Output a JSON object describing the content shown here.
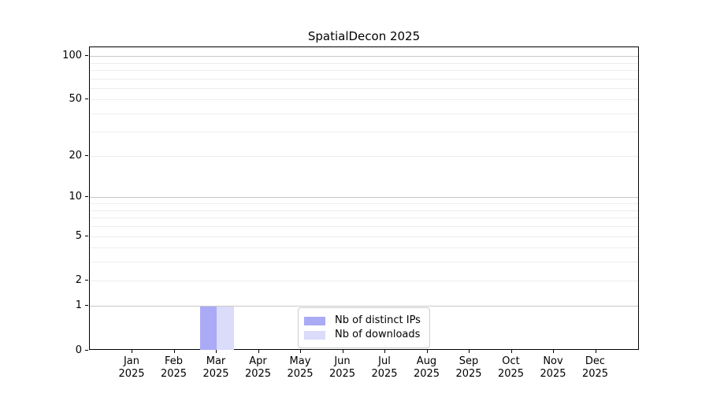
{
  "title": "SpatialDecon 2025",
  "chart_data": {
    "type": "bar",
    "title": "SpatialDecon 2025",
    "categories": [
      "Jan 2025",
      "Feb 2025",
      "Mar 2025",
      "Apr 2025",
      "May 2025",
      "Jun 2025",
      "Jul 2025",
      "Aug 2025",
      "Sep 2025",
      "Oct 2025",
      "Nov 2025",
      "Dec 2025"
    ],
    "series": [
      {
        "name": "Nb of distinct IPs",
        "color": "#aaaaf6",
        "values": [
          0,
          0,
          1,
          0,
          0,
          0,
          0,
          0,
          0,
          0,
          0,
          0
        ]
      },
      {
        "name": "Nb of downloads",
        "color": "#dbdbfa",
        "values": [
          0,
          0,
          1,
          0,
          0,
          0,
          0,
          0,
          0,
          0,
          0,
          0
        ]
      }
    ],
    "xlabel": "",
    "ylabel": "",
    "yscale": "log1p",
    "ytick_labels": [
      "0",
      "1",
      "2",
      "5",
      "10",
      "20",
      "50",
      "100"
    ],
    "ytick_values": [
      0,
      1,
      2,
      5,
      10,
      20,
      50,
      100
    ],
    "ylim": [
      0,
      115
    ],
    "grid": "horizontal",
    "legend_position": "inside-bottom-center",
    "colors": {
      "major_grid": "#c8c8c8",
      "minor_grid": "#ededed",
      "spine": "#000000",
      "text": "#000000",
      "background": "#ffffff"
    }
  }
}
